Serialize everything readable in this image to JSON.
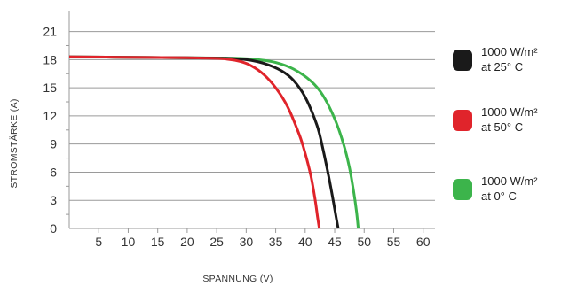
{
  "chart_data": {
    "type": "line",
    "title": "",
    "xlabel": "SPANNUNG (V)",
    "ylabel": "STROMSTÄRKE (A)",
    "xlim": [
      0,
      62
    ],
    "ylim": [
      0,
      22
    ],
    "xticks": [
      5,
      10,
      15,
      20,
      25,
      30,
      35,
      40,
      45,
      50,
      55,
      60
    ],
    "yticks": [
      0,
      3,
      6,
      9,
      12,
      15,
      18,
      21
    ],
    "grid": "horizontal",
    "legend_position": "right",
    "series": [
      {
        "name_lines": [
          "1000 W/m²",
          "at 25° C"
        ],
        "color": "#1a1a1a",
        "x": [
          0,
          10,
          20,
          26,
          30,
          33,
          36,
          38,
          40,
          42,
          43,
          44,
          44.8,
          45.3,
          45.6
        ],
        "y": [
          18.3,
          18.25,
          18.2,
          18.15,
          18.0,
          17.6,
          16.8,
          15.8,
          14.0,
          11.0,
          8.5,
          5.5,
          2.8,
          1.0,
          0
        ]
      },
      {
        "name_lines": [
          "1000 W/m²",
          "at 50° C"
        ],
        "color": "#e0242b",
        "x": [
          0,
          10,
          20,
          26,
          29,
          31,
          33,
          35,
          37,
          39,
          40,
          41,
          41.7,
          42.1,
          42.4
        ],
        "y": [
          18.3,
          18.25,
          18.2,
          18.1,
          17.8,
          17.3,
          16.4,
          15.0,
          13.0,
          10.0,
          8.0,
          5.5,
          3.0,
          1.2,
          0
        ]
      },
      {
        "name_lines": [
          "1000 W/m²",
          "at 0° C"
        ],
        "color": "#3cb44b",
        "x": [
          0,
          10,
          20,
          28,
          32,
          35,
          38,
          41,
          43,
          45,
          46.5,
          47.5,
          48.2,
          48.7,
          49.0
        ],
        "y": [
          18.3,
          18.25,
          18.2,
          18.15,
          18.0,
          17.7,
          17.0,
          15.7,
          14.2,
          11.7,
          9.0,
          6.5,
          4.0,
          1.8,
          0
        ]
      }
    ]
  }
}
